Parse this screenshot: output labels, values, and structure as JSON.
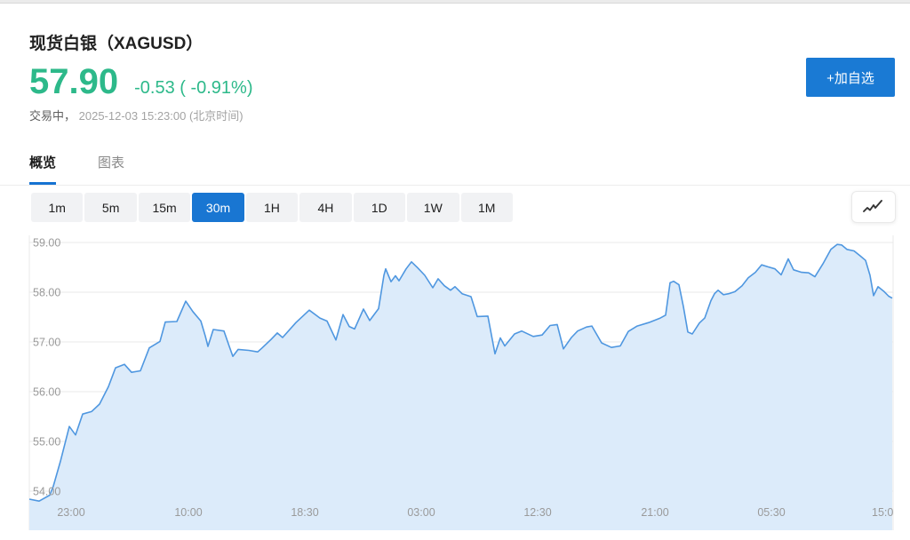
{
  "header": {
    "title": "现货白银（XAGUSD）",
    "price": "57.90",
    "change": "-0.53 ( -0.91%)",
    "status_prefix": "交易中，",
    "status_time": "2025-12-03 15:23:00 (北京时间)",
    "add_watchlist_label": "+加自选",
    "price_color": "#2db98a",
    "add_button_color": "#1a7ad4"
  },
  "tabs": [
    {
      "name": "tab-overview",
      "label": "概览",
      "active": true
    },
    {
      "name": "tab-chart",
      "label": "图表",
      "active": false
    }
  ],
  "timeframes": [
    {
      "label": "1m",
      "active": false
    },
    {
      "label": "5m",
      "active": false
    },
    {
      "label": "15m",
      "active": false
    },
    {
      "label": "30m",
      "active": true
    },
    {
      "label": "1H",
      "active": false
    },
    {
      "label": "4H",
      "active": false
    },
    {
      "label": "1D",
      "active": false
    },
    {
      "label": "1W",
      "active": false
    },
    {
      "label": "1M",
      "active": false
    }
  ],
  "toolbar": {
    "chart_style_icon": "trend-line-icon",
    "active_timeframe_color": "#1976d2"
  },
  "chart_data": {
    "type": "area",
    "title": "",
    "xlabel": "",
    "ylabel": "",
    "ylim": [
      53.1,
      59.15
    ],
    "grid": true,
    "y_ticks": [
      {
        "value": 59,
        "label": "59.00"
      },
      {
        "value": 58,
        "label": "58.00"
      },
      {
        "value": 57,
        "label": "57.00"
      },
      {
        "value": 56,
        "label": "56.00"
      },
      {
        "value": 55,
        "label": "55.00"
      },
      {
        "value": 54,
        "label": "54.00"
      }
    ],
    "x_ticks": [
      "23:00",
      "10:00",
      "18:30",
      "03:00",
      "12:30",
      "21:00",
      "05:30",
      "15:0"
    ],
    "line_color": "#4f97e0",
    "fill_color": "#dcebfa",
    "grid_color": "#e9e9e9",
    "axis_text_color": "#9a9a9a",
    "series": [
      {
        "name": "price",
        "points": [
          [
            33,
            53.84
          ],
          [
            44,
            53.8
          ],
          [
            56,
            53.92
          ],
          [
            60,
            54.1
          ],
          [
            68,
            54.6
          ],
          [
            78,
            55.3
          ],
          [
            85,
            55.13
          ],
          [
            93,
            55.55
          ],
          [
            103,
            55.6
          ],
          [
            112,
            55.75
          ],
          [
            122,
            56.1
          ],
          [
            130,
            56.48
          ],
          [
            140,
            56.55
          ],
          [
            148,
            56.39
          ],
          [
            158,
            56.42
          ],
          [
            168,
            56.88
          ],
          [
            180,
            57.01
          ],
          [
            186,
            57.4
          ],
          [
            199,
            57.41
          ],
          [
            209,
            57.82
          ],
          [
            217,
            57.61
          ],
          [
            226,
            57.42
          ],
          [
            231,
            57.12
          ],
          [
            234,
            56.91
          ],
          [
            240,
            57.25
          ],
          [
            252,
            57.22
          ],
          [
            258,
            56.91
          ],
          [
            262,
            56.71
          ],
          [
            268,
            56.85
          ],
          [
            280,
            56.83
          ],
          [
            290,
            56.8
          ],
          [
            295,
            56.88
          ],
          [
            305,
            57.05
          ],
          [
            312,
            57.18
          ],
          [
            318,
            57.09
          ],
          [
            333,
            57.39
          ],
          [
            348,
            57.64
          ],
          [
            360,
            57.48
          ],
          [
            368,
            57.42
          ],
          [
            378,
            57.04
          ],
          [
            386,
            57.55
          ],
          [
            393,
            57.31
          ],
          [
            399,
            57.26
          ],
          [
            409,
            57.66
          ],
          [
            416,
            57.43
          ],
          [
            426,
            57.67
          ],
          [
            432,
            58.34
          ],
          [
            434,
            58.47
          ],
          [
            440,
            58.21
          ],
          [
            445,
            58.33
          ],
          [
            449,
            58.23
          ],
          [
            457,
            58.47
          ],
          [
            463,
            58.61
          ],
          [
            470,
            58.49
          ],
          [
            478,
            58.34
          ],
          [
            487,
            58.09
          ],
          [
            493,
            58.27
          ],
          [
            500,
            58.13
          ],
          [
            507,
            58.04
          ],
          [
            512,
            58.11
          ],
          [
            520,
            57.97
          ],
          [
            530,
            57.91
          ],
          [
            537,
            57.51
          ],
          [
            549,
            57.52
          ],
          [
            557,
            56.76
          ],
          [
            563,
            57.08
          ],
          [
            568,
            56.92
          ],
          [
            579,
            57.16
          ],
          [
            587,
            57.22
          ],
          [
            600,
            57.11
          ],
          [
            610,
            57.14
          ],
          [
            619,
            57.33
          ],
          [
            627,
            57.35
          ],
          [
            634,
            56.86
          ],
          [
            643,
            57.09
          ],
          [
            650,
            57.22
          ],
          [
            660,
            57.3
          ],
          [
            666,
            57.32
          ],
          [
            677,
            56.98
          ],
          [
            688,
            56.89
          ],
          [
            698,
            56.92
          ],
          [
            707,
            57.21
          ],
          [
            717,
            57.32
          ],
          [
            730,
            57.39
          ],
          [
            743,
            57.48
          ],
          [
            749,
            57.54
          ],
          [
            754,
            58.19
          ],
          [
            758,
            58.22
          ],
          [
            764,
            58.15
          ],
          [
            769,
            57.71
          ],
          [
            774,
            57.2
          ],
          [
            779,
            57.16
          ],
          [
            787,
            57.38
          ],
          [
            793,
            57.48
          ],
          [
            800,
            57.83
          ],
          [
            804,
            57.97
          ],
          [
            808,
            58.04
          ],
          [
            814,
            57.95
          ],
          [
            820,
            57.97
          ],
          [
            827,
            58.01
          ],
          [
            835,
            58.13
          ],
          [
            842,
            58.29
          ],
          [
            850,
            58.4
          ],
          [
            857,
            58.55
          ],
          [
            864,
            58.51
          ],
          [
            872,
            58.47
          ],
          [
            879,
            58.35
          ],
          [
            887,
            58.67
          ],
          [
            893,
            58.45
          ],
          [
            902,
            58.4
          ],
          [
            910,
            58.39
          ],
          [
            917,
            58.31
          ],
          [
            926,
            58.57
          ],
          [
            935,
            58.86
          ],
          [
            942,
            58.96
          ],
          [
            947,
            58.95
          ],
          [
            953,
            58.86
          ],
          [
            961,
            58.83
          ],
          [
            968,
            58.73
          ],
          [
            974,
            58.64
          ],
          [
            979,
            58.34
          ],
          [
            983,
            57.93
          ],
          [
            988,
            58.11
          ],
          [
            995,
            58.01
          ],
          [
            1000,
            57.92
          ],
          [
            1004,
            57.88
          ]
        ]
      }
    ]
  }
}
